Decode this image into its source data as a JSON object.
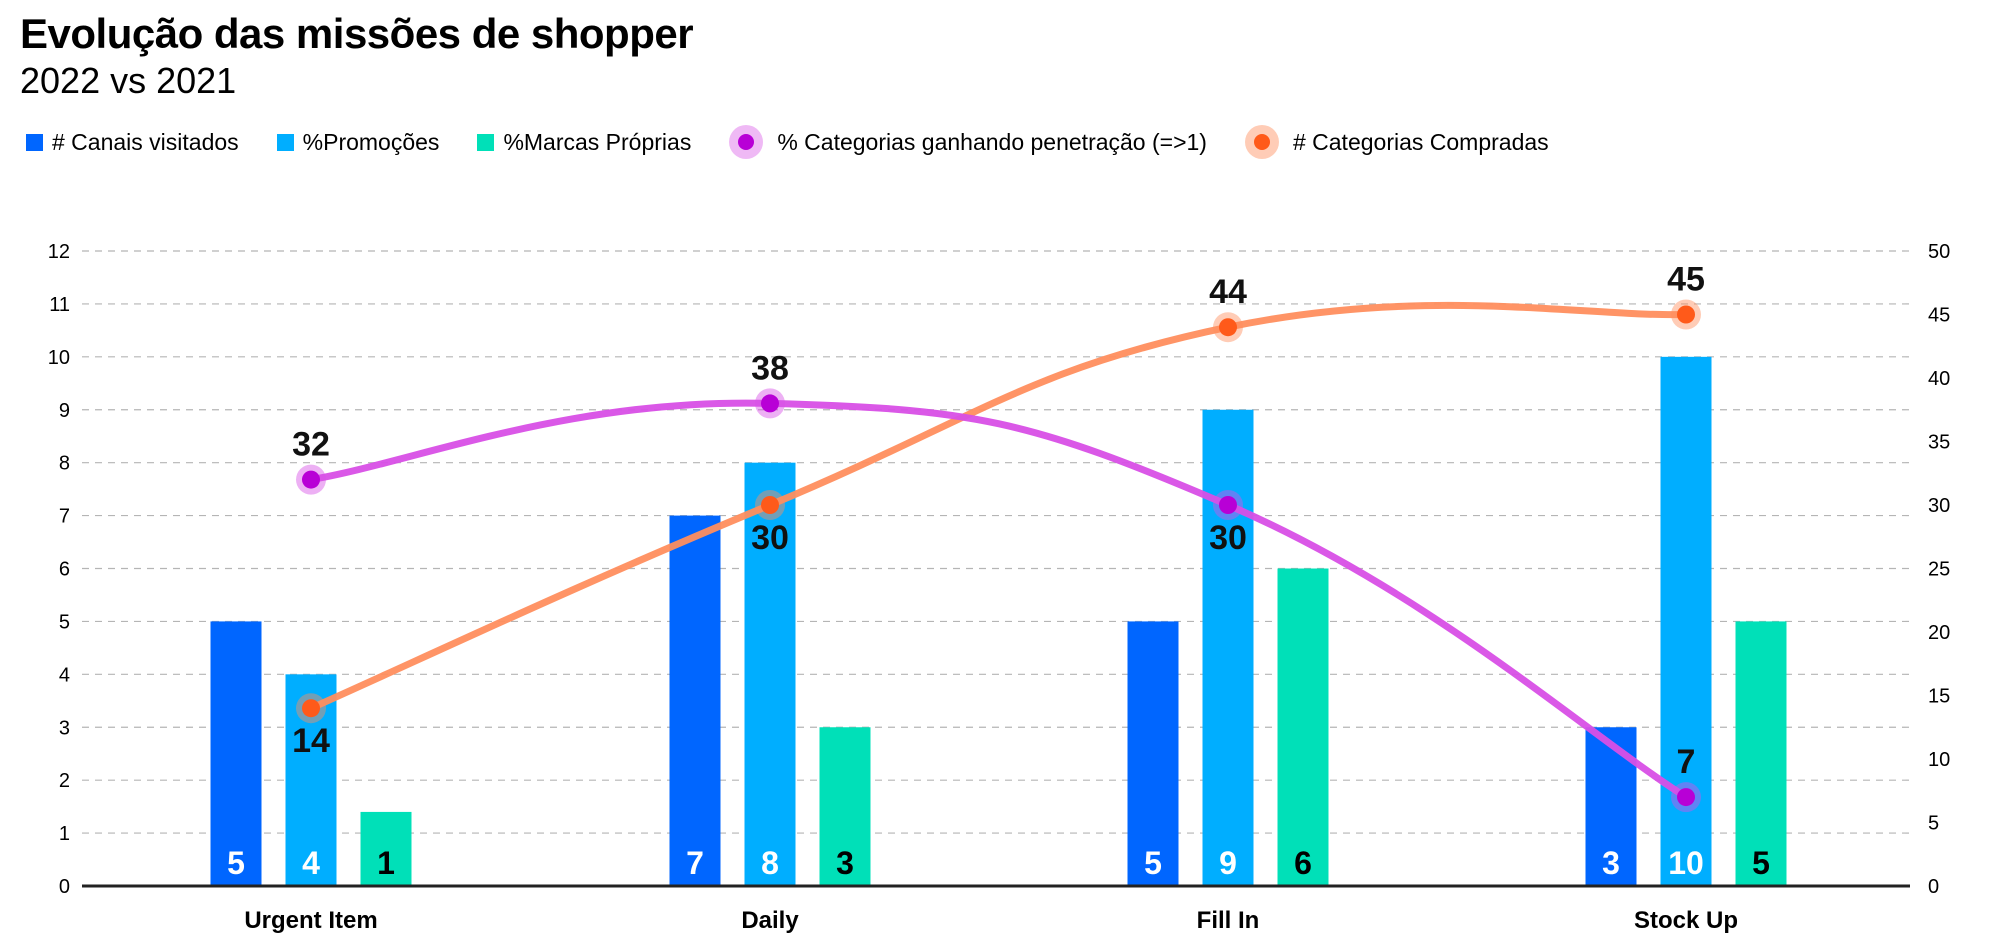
{
  "title": "Evolução das missões de shopper",
  "subtitle": "2022 vs 2021",
  "chart_data": {
    "type": "bar",
    "title": "Evolução das missões de shopper",
    "subtitle": "2022 vs 2021",
    "categories": [
      "Urgent Item",
      "Daily",
      "Fill In",
      "Stock Up"
    ],
    "y_left": {
      "ylim": [
        0,
        12
      ],
      "ticks": [
        0,
        1,
        2,
        3,
        4,
        5,
        6,
        7,
        8,
        9,
        10,
        11,
        12
      ]
    },
    "y_right": {
      "ylim": [
        0,
        50
      ],
      "ticks": [
        0,
        5,
        10,
        15,
        20,
        25,
        30,
        35,
        40,
        45,
        50
      ]
    },
    "grid": true,
    "legend_position": "top-left",
    "bar_series": [
      {
        "name": "# Canais visitados",
        "color": "#0066FF",
        "values": [
          5,
          7,
          5,
          3
        ],
        "labels": [
          "5",
          "7",
          "5",
          "3"
        ]
      },
      {
        "name": "%Promoções",
        "color": "#00AEFF",
        "values": [
          4,
          8,
          9,
          10
        ],
        "labels": [
          "4",
          "8",
          "9",
          "10"
        ]
      },
      {
        "name": "%Marcas Próprias",
        "color": "#00E0B8",
        "values": [
          1.4,
          3,
          6,
          5
        ],
        "labels": [
          "1",
          "3",
          "6",
          "5"
        ]
      }
    ],
    "line_series": [
      {
        "name": "% Categorias ganhando penetração (=>1)",
        "color": "#D84FE6",
        "dot_color": "#B800D6",
        "axis": "right",
        "values": [
          32,
          38,
          30,
          7
        ],
        "labels": [
          "32",
          "38",
          "30",
          "7"
        ],
        "label_positions": [
          "above",
          "above",
          "below",
          "above"
        ]
      },
      {
        "name": "# Categorias Compradas",
        "color": "#FF8E5E",
        "dot_color": "#FF5A1A",
        "axis": "right",
        "values": [
          14,
          30,
          44,
          45
        ],
        "labels": [
          "14",
          "30",
          "44",
          "45"
        ],
        "label_positions": [
          "below",
          "below",
          "above",
          "above"
        ]
      }
    ]
  }
}
